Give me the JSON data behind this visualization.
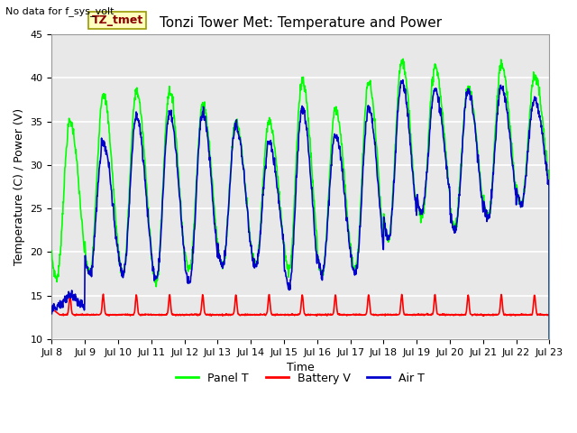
{
  "title": "Tonzi Tower Met: Temperature and Power",
  "ylabel": "Temperature (C) / Power (V)",
  "xlabel": "Time",
  "top_left_note": "No data for f_sys_volt",
  "legend_label": "TZ_tmet",
  "ylim": [
    10,
    45
  ],
  "x_tick_labels": [
    "Jul 8",
    "Jul 9",
    "Jul 10",
    "Jul 11",
    "Jul 12",
    "Jul 13",
    "Jul 14",
    "Jul 15",
    "Jul 16",
    "Jul 17",
    "Jul 18",
    "Jul 19",
    "Jul 20",
    "Jul 21",
    "Jul 22",
    "Jul 23"
  ],
  "panel_color": "#00FF00",
  "battery_color": "#FF0000",
  "air_color": "#0000CC",
  "background_color": "#E8E8E8",
  "grid_color": "#FFFFFF",
  "fig_width": 6.4,
  "fig_height": 4.8,
  "dpi": 100
}
